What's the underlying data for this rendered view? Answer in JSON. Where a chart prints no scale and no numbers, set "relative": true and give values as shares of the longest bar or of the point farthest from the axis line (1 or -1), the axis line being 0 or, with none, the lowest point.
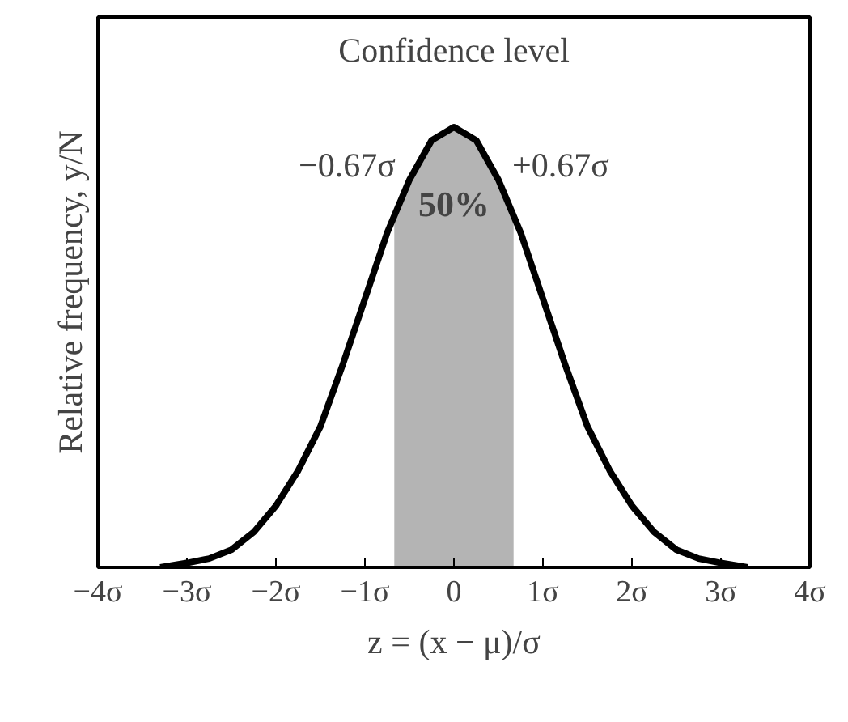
{
  "chart_data": {
    "type": "line",
    "relative": true,
    "xlabel": "z = (x − μ)/σ",
    "ylabel": "Relative frequency, y/N",
    "x": [
      -3.3,
      -3,
      -2.75,
      -2.5,
      -2.25,
      -2,
      -1.75,
      -1.5,
      -1.25,
      -1,
      -0.75,
      -0.5,
      -0.25,
      0,
      0.25,
      0.5,
      0.75,
      1,
      1.25,
      1.5,
      1.75,
      2,
      2.25,
      2.5,
      2.75,
      3,
      3.3
    ],
    "series": [
      {
        "color": "#000000",
        "values": [
          0,
          0.01,
          0.02,
          0.04,
          0.08,
          0.14,
          0.22,
          0.32,
          0.46,
          0.61,
          0.76,
          0.88,
          0.97,
          1,
          0.97,
          0.88,
          0.76,
          0.61,
          0.46,
          0.32,
          0.22,
          0.14,
          0.08,
          0.04,
          0.02,
          0.01,
          0
        ]
      }
    ],
    "xlim": [
      -4,
      4
    ],
    "xticks": [
      {
        "value": -4,
        "label": "−4σ"
      },
      {
        "value": -3,
        "label": "−3σ"
      },
      {
        "value": -2,
        "label": "−2σ"
      },
      {
        "value": -1,
        "label": "−1σ"
      },
      0,
      {
        "value": 1,
        "label": "1σ"
      },
      {
        "value": 2,
        "label": "2σ"
      },
      {
        "value": 3,
        "label": "3σ"
      },
      {
        "value": 4,
        "label": "4σ"
      }
    ],
    "bands": [
      {
        "axis": "x",
        "from": -0.67,
        "to": 0.67,
        "label": "50%",
        "color": "#b4b4b4"
      }
    ],
    "annotations": [
      "Confidence level",
      "−0.67σ",
      "+0.67σ"
    ],
    "grid": false,
    "marker": "none",
    "line_style": "solid"
  }
}
